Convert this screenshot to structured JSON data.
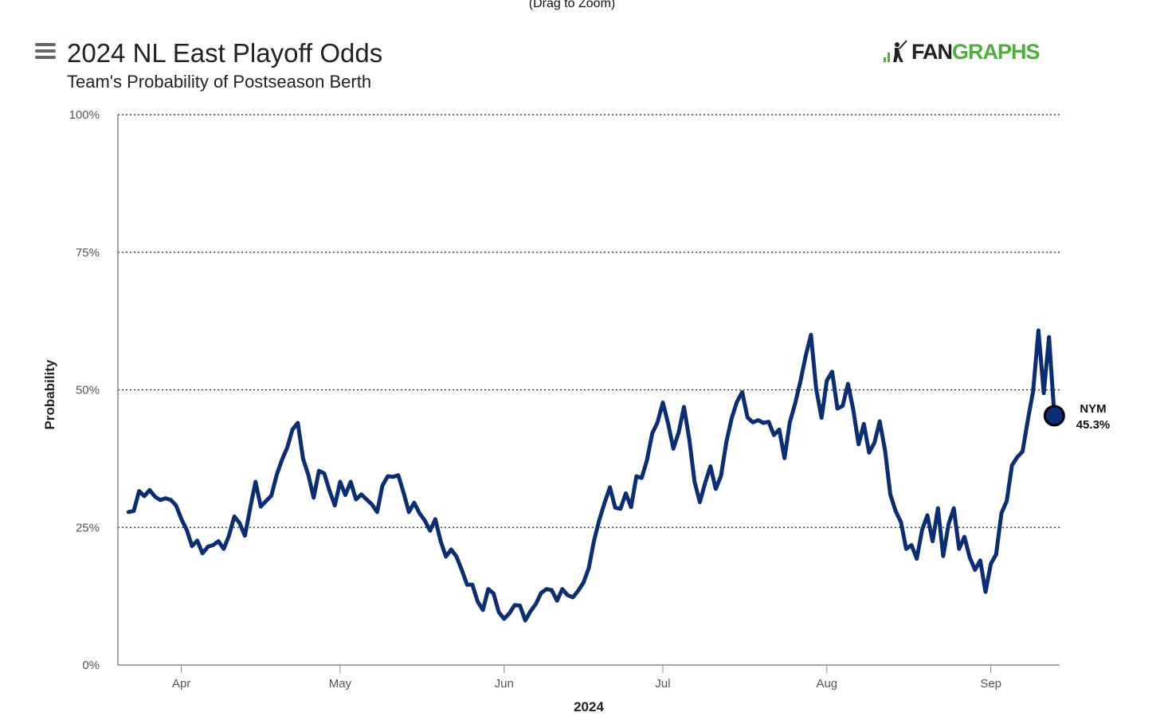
{
  "header": {
    "zoom_hint": "(Drag to Zoom)",
    "title": "2024 NL East Playoff Odds",
    "subtitle": "Team's Probability of Postseason Berth",
    "logo_fan": "FAN",
    "logo_graphs": "GRAPHS"
  },
  "colors": {
    "line": "#0a2d74",
    "logo_green": "#50ae3a"
  },
  "chart_data": {
    "type": "line",
    "title": "2024 NL East Playoff Odds",
    "subtitle": "Team's Probability of Postseason Berth",
    "xlabel": "2024",
    "ylabel": "Probability",
    "ylim": [
      0,
      100
    ],
    "xlim": [
      "2024-03-20",
      "2024-09-14"
    ],
    "grid": "horizontal dotted",
    "y_ticks": [
      "0%",
      "25%",
      "50%",
      "75%",
      "100%"
    ],
    "x_ticks": [
      "Apr",
      "May",
      "Jun",
      "Jul",
      "Aug",
      "Sep"
    ],
    "x_tick_dates": [
      "2024-04-01",
      "2024-05-01",
      "2024-06-01",
      "2024-07-01",
      "2024-08-01",
      "2024-09-01"
    ],
    "series": [
      {
        "name": "NYM",
        "end_label": "45.3%",
        "end_value": 45.3,
        "start_date": "2024-03-22",
        "values": [
          27.8,
          28.0,
          31.6,
          30.7,
          31.8,
          30.6,
          30.0,
          30.3,
          30.0,
          29.0,
          26.5,
          24.6,
          21.6,
          22.6,
          20.3,
          21.5,
          21.8,
          22.5,
          21.1,
          23.5,
          27.0,
          25.8,
          23.5,
          28.5,
          33.3,
          28.8,
          29.8,
          30.8,
          34.5,
          37.3,
          39.5,
          42.8,
          44.0,
          37.5,
          34.5,
          30.4,
          35.3,
          34.8,
          31.7,
          29.0,
          33.3,
          30.9,
          33.3,
          30.1,
          31.0,
          30.1,
          29.2,
          27.8,
          32.6,
          34.3,
          34.2,
          34.5,
          31.3,
          27.8,
          29.5,
          27.6,
          26.3,
          24.4,
          26.5,
          22.5,
          19.7,
          21.0,
          19.7,
          17.3,
          14.6,
          14.6,
          11.5,
          10.0,
          13.8,
          13.0,
          9.6,
          8.4,
          9.4,
          10.9,
          10.8,
          8.1,
          9.8,
          11.1,
          13.1,
          13.8,
          13.6,
          11.7,
          13.8,
          12.7,
          12.3,
          13.5,
          15.0,
          17.6,
          22.6,
          26.4,
          29.5,
          32.3,
          28.6,
          28.4,
          31.2,
          28.7,
          34.3,
          34.0,
          37.2,
          42.1,
          44.1,
          47.7,
          43.9,
          39.3,
          42.3,
          46.9,
          41.0,
          33.3,
          29.6,
          33.1,
          36.1,
          32.0,
          34.4,
          40.5,
          44.8,
          47.8,
          49.6,
          45.0,
          44.1,
          44.5,
          44.0,
          44.2,
          41.8,
          42.8,
          37.6,
          44.1,
          47.5,
          51.5,
          56.2,
          60.0,
          50.1,
          44.9,
          51.7,
          53.3,
          46.6,
          47.1,
          51.1,
          46.4,
          40.1,
          43.8,
          38.6,
          40.4,
          44.3,
          39.0,
          31.0,
          28.0,
          26.0,
          21.1,
          21.8,
          19.3,
          24.5,
          27.2,
          22.5,
          28.5,
          19.8,
          25.6,
          28.5,
          21.1,
          23.3,
          19.6,
          17.3,
          19.0,
          13.3,
          18.4,
          20.1,
          27.6,
          29.8,
          36.3,
          37.8,
          38.8,
          44.6,
          49.8,
          60.8,
          49.4,
          59.6,
          45.3
        ]
      }
    ]
  }
}
